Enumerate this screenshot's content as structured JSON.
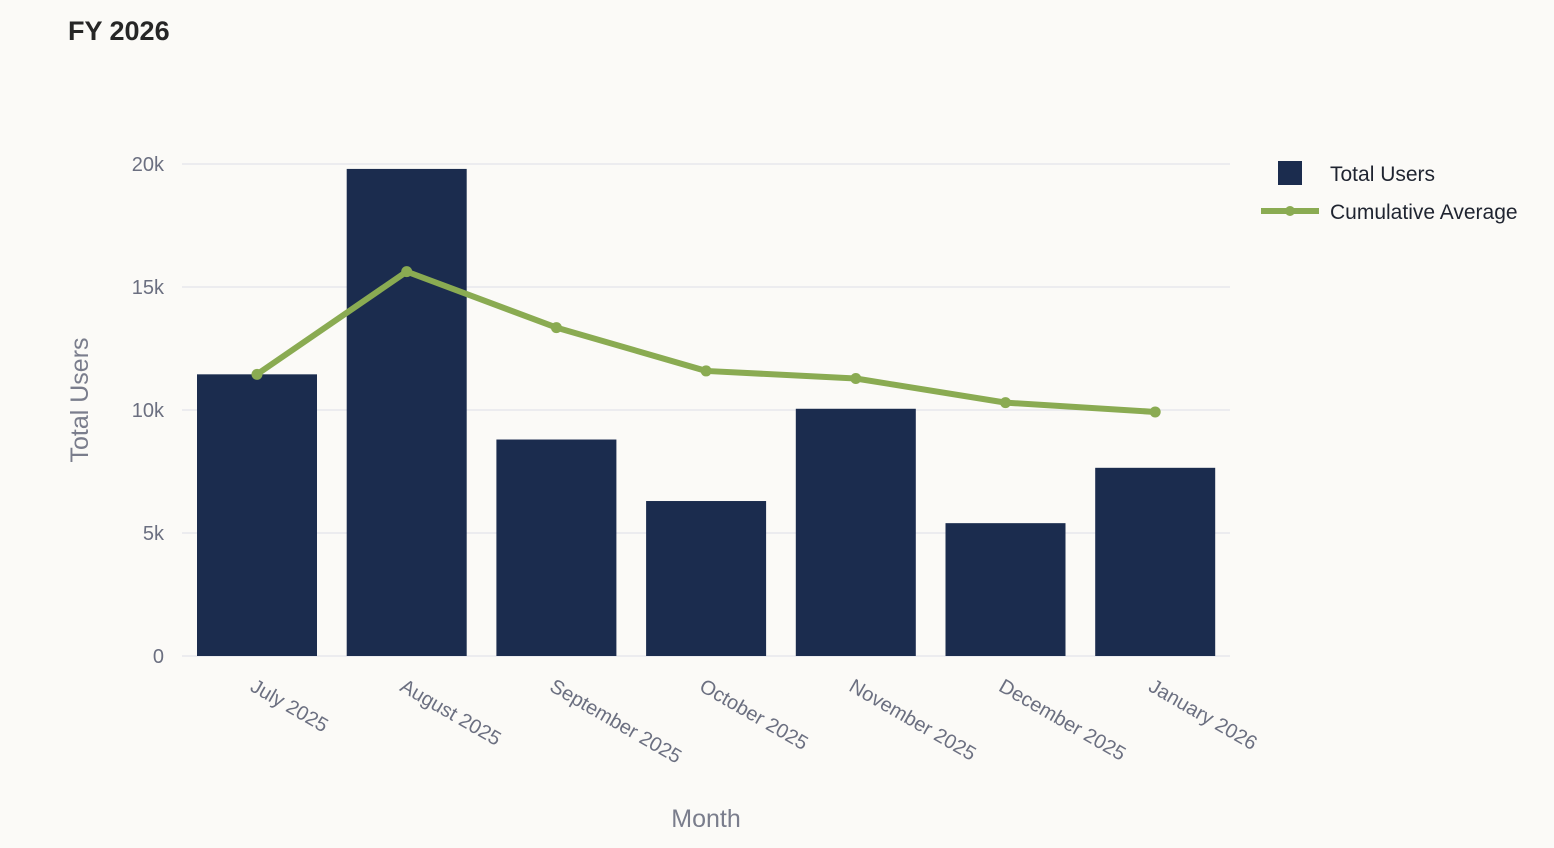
{
  "title": "FY 2026",
  "chart_data": {
    "type": "bar",
    "title": "FY 2026",
    "xlabel": "Month",
    "ylabel": "Total Users",
    "categories": [
      "July 2025",
      "August 2025",
      "September 2025",
      "October 2025",
      "November 2025",
      "December 2025",
      "January 2026"
    ],
    "ylim": [
      0,
      20000
    ],
    "yticks": [
      0,
      5000,
      10000,
      15000,
      20000
    ],
    "ytick_labels": [
      "0",
      "5k",
      "10k",
      "15k",
      "20k"
    ],
    "grid": true,
    "legend_position": "top-right",
    "series": [
      {
        "name": "Total Users",
        "type": "bar",
        "color": "#1b2c4e",
        "values": [
          11450,
          19800,
          8800,
          6300,
          10050,
          5400,
          7650
        ]
      },
      {
        "name": "Cumulative Average",
        "type": "line",
        "color": "#8aab52",
        "values": [
          11450,
          15625,
          13350,
          11588,
          11280,
          10300,
          9921
        ]
      }
    ]
  }
}
